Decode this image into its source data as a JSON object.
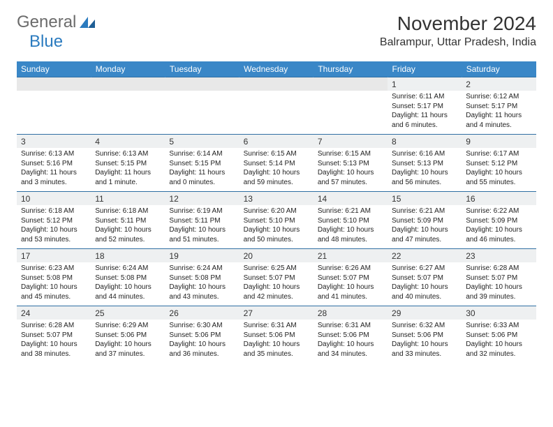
{
  "logo": {
    "text_a": "General",
    "text_b": "Blue"
  },
  "title": "November 2024",
  "location": "Balrampur, Uttar Pradesh, India",
  "colors": {
    "header_bg": "#3a87c7",
    "band_bg": "#eef0f1",
    "border": "#2f6fa3",
    "logo_gray": "#6b6b6b",
    "logo_blue": "#2b7bbf"
  },
  "days_of_week": [
    "Sunday",
    "Monday",
    "Tuesday",
    "Wednesday",
    "Thursday",
    "Friday",
    "Saturday"
  ],
  "weeks": [
    [
      null,
      null,
      null,
      null,
      null,
      {
        "n": "1",
        "sr": "Sunrise: 6:11 AM",
        "ss": "Sunset: 5:17 PM",
        "dl1": "Daylight: 11 hours",
        "dl2": "and 6 minutes."
      },
      {
        "n": "2",
        "sr": "Sunrise: 6:12 AM",
        "ss": "Sunset: 5:17 PM",
        "dl1": "Daylight: 11 hours",
        "dl2": "and 4 minutes."
      }
    ],
    [
      {
        "n": "3",
        "sr": "Sunrise: 6:13 AM",
        "ss": "Sunset: 5:16 PM",
        "dl1": "Daylight: 11 hours",
        "dl2": "and 3 minutes."
      },
      {
        "n": "4",
        "sr": "Sunrise: 6:13 AM",
        "ss": "Sunset: 5:15 PM",
        "dl1": "Daylight: 11 hours",
        "dl2": "and 1 minute."
      },
      {
        "n": "5",
        "sr": "Sunrise: 6:14 AM",
        "ss": "Sunset: 5:15 PM",
        "dl1": "Daylight: 11 hours",
        "dl2": "and 0 minutes."
      },
      {
        "n": "6",
        "sr": "Sunrise: 6:15 AM",
        "ss": "Sunset: 5:14 PM",
        "dl1": "Daylight: 10 hours",
        "dl2": "and 59 minutes."
      },
      {
        "n": "7",
        "sr": "Sunrise: 6:15 AM",
        "ss": "Sunset: 5:13 PM",
        "dl1": "Daylight: 10 hours",
        "dl2": "and 57 minutes."
      },
      {
        "n": "8",
        "sr": "Sunrise: 6:16 AM",
        "ss": "Sunset: 5:13 PM",
        "dl1": "Daylight: 10 hours",
        "dl2": "and 56 minutes."
      },
      {
        "n": "9",
        "sr": "Sunrise: 6:17 AM",
        "ss": "Sunset: 5:12 PM",
        "dl1": "Daylight: 10 hours",
        "dl2": "and 55 minutes."
      }
    ],
    [
      {
        "n": "10",
        "sr": "Sunrise: 6:18 AM",
        "ss": "Sunset: 5:12 PM",
        "dl1": "Daylight: 10 hours",
        "dl2": "and 53 minutes."
      },
      {
        "n": "11",
        "sr": "Sunrise: 6:18 AM",
        "ss": "Sunset: 5:11 PM",
        "dl1": "Daylight: 10 hours",
        "dl2": "and 52 minutes."
      },
      {
        "n": "12",
        "sr": "Sunrise: 6:19 AM",
        "ss": "Sunset: 5:11 PM",
        "dl1": "Daylight: 10 hours",
        "dl2": "and 51 minutes."
      },
      {
        "n": "13",
        "sr": "Sunrise: 6:20 AM",
        "ss": "Sunset: 5:10 PM",
        "dl1": "Daylight: 10 hours",
        "dl2": "and 50 minutes."
      },
      {
        "n": "14",
        "sr": "Sunrise: 6:21 AM",
        "ss": "Sunset: 5:10 PM",
        "dl1": "Daylight: 10 hours",
        "dl2": "and 48 minutes."
      },
      {
        "n": "15",
        "sr": "Sunrise: 6:21 AM",
        "ss": "Sunset: 5:09 PM",
        "dl1": "Daylight: 10 hours",
        "dl2": "and 47 minutes."
      },
      {
        "n": "16",
        "sr": "Sunrise: 6:22 AM",
        "ss": "Sunset: 5:09 PM",
        "dl1": "Daylight: 10 hours",
        "dl2": "and 46 minutes."
      }
    ],
    [
      {
        "n": "17",
        "sr": "Sunrise: 6:23 AM",
        "ss": "Sunset: 5:08 PM",
        "dl1": "Daylight: 10 hours",
        "dl2": "and 45 minutes."
      },
      {
        "n": "18",
        "sr": "Sunrise: 6:24 AM",
        "ss": "Sunset: 5:08 PM",
        "dl1": "Daylight: 10 hours",
        "dl2": "and 44 minutes."
      },
      {
        "n": "19",
        "sr": "Sunrise: 6:24 AM",
        "ss": "Sunset: 5:08 PM",
        "dl1": "Daylight: 10 hours",
        "dl2": "and 43 minutes."
      },
      {
        "n": "20",
        "sr": "Sunrise: 6:25 AM",
        "ss": "Sunset: 5:07 PM",
        "dl1": "Daylight: 10 hours",
        "dl2": "and 42 minutes."
      },
      {
        "n": "21",
        "sr": "Sunrise: 6:26 AM",
        "ss": "Sunset: 5:07 PM",
        "dl1": "Daylight: 10 hours",
        "dl2": "and 41 minutes."
      },
      {
        "n": "22",
        "sr": "Sunrise: 6:27 AM",
        "ss": "Sunset: 5:07 PM",
        "dl1": "Daylight: 10 hours",
        "dl2": "and 40 minutes."
      },
      {
        "n": "23",
        "sr": "Sunrise: 6:28 AM",
        "ss": "Sunset: 5:07 PM",
        "dl1": "Daylight: 10 hours",
        "dl2": "and 39 minutes."
      }
    ],
    [
      {
        "n": "24",
        "sr": "Sunrise: 6:28 AM",
        "ss": "Sunset: 5:07 PM",
        "dl1": "Daylight: 10 hours",
        "dl2": "and 38 minutes."
      },
      {
        "n": "25",
        "sr": "Sunrise: 6:29 AM",
        "ss": "Sunset: 5:06 PM",
        "dl1": "Daylight: 10 hours",
        "dl2": "and 37 minutes."
      },
      {
        "n": "26",
        "sr": "Sunrise: 6:30 AM",
        "ss": "Sunset: 5:06 PM",
        "dl1": "Daylight: 10 hours",
        "dl2": "and 36 minutes."
      },
      {
        "n": "27",
        "sr": "Sunrise: 6:31 AM",
        "ss": "Sunset: 5:06 PM",
        "dl1": "Daylight: 10 hours",
        "dl2": "and 35 minutes."
      },
      {
        "n": "28",
        "sr": "Sunrise: 6:31 AM",
        "ss": "Sunset: 5:06 PM",
        "dl1": "Daylight: 10 hours",
        "dl2": "and 34 minutes."
      },
      {
        "n": "29",
        "sr": "Sunrise: 6:32 AM",
        "ss": "Sunset: 5:06 PM",
        "dl1": "Daylight: 10 hours",
        "dl2": "and 33 minutes."
      },
      {
        "n": "30",
        "sr": "Sunrise: 6:33 AM",
        "ss": "Sunset: 5:06 PM",
        "dl1": "Daylight: 10 hours",
        "dl2": "and 32 minutes."
      }
    ]
  ]
}
